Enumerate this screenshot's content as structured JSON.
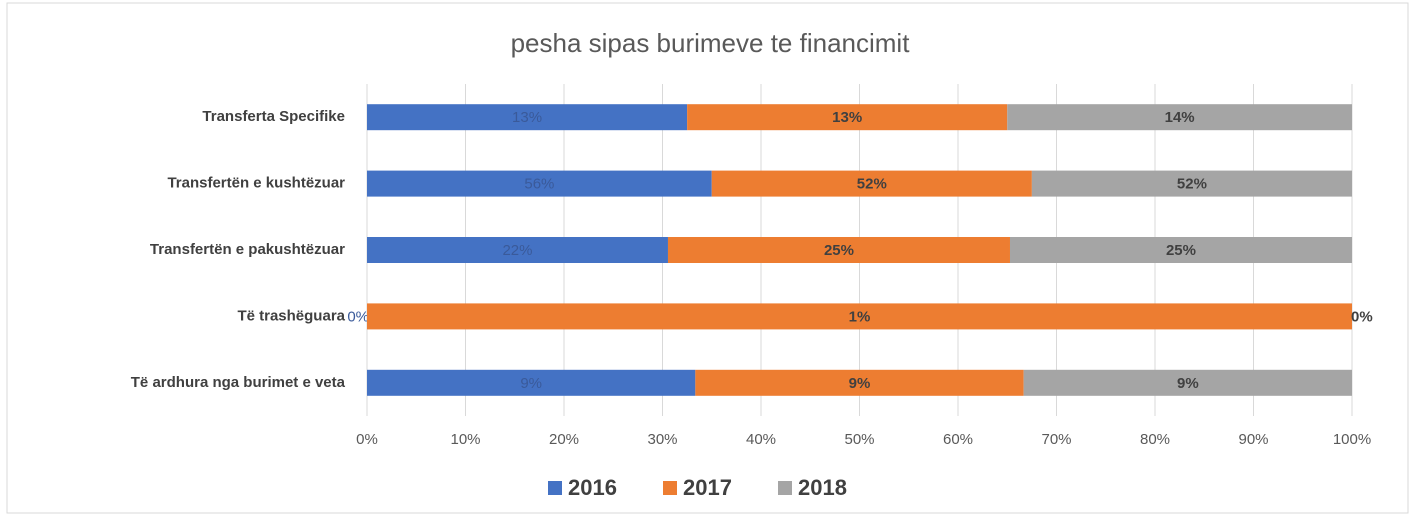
{
  "chart_data": {
    "type": "bar",
    "orientation": "horizontal",
    "stack": "percent",
    "title": "pesha sipas burimeve te financimit",
    "categories": [
      "Transferta Specifike",
      "Transfertën e kushtëzuar",
      "Transfertën e pakushtëzuar",
      "Të trashëguara",
      "Të ardhura nga burimet e veta"
    ],
    "series": [
      {
        "name": "2016",
        "color": "#4472c4",
        "values": [
          13,
          56,
          22,
          0,
          9
        ],
        "value_labels": [
          "13%",
          "56%",
          "22%",
          "0%",
          "9%"
        ]
      },
      {
        "name": "2017",
        "color": "#ed7d31",
        "values": [
          13,
          52,
          25,
          1,
          9
        ],
        "value_labels": [
          "13%",
          "52%",
          "25%",
          "1%",
          "9%"
        ]
      },
      {
        "name": "2018",
        "color": "#a5a5a5",
        "values": [
          14,
          52,
          25,
          0,
          9
        ],
        "value_labels": [
          "14%",
          "52%",
          "25%",
          "0%",
          "9%"
        ]
      }
    ],
    "xlim": [
      0,
      100
    ],
    "xticks": [
      {
        "value": 0,
        "label": "0%"
      },
      {
        "value": 10,
        "label": "10%"
      },
      {
        "value": 20,
        "label": "20%"
      },
      {
        "value": 30,
        "label": "30%"
      },
      {
        "value": 40,
        "label": "40%"
      },
      {
        "value": 50,
        "label": "50%"
      },
      {
        "value": 60,
        "label": "60%"
      },
      {
        "value": 70,
        "label": "70%"
      },
      {
        "value": 80,
        "label": "80%"
      },
      {
        "value": 90,
        "label": "90%"
      },
      {
        "value": 100,
        "label": "100%"
      }
    ],
    "grid": true,
    "legend": "bottom"
  }
}
